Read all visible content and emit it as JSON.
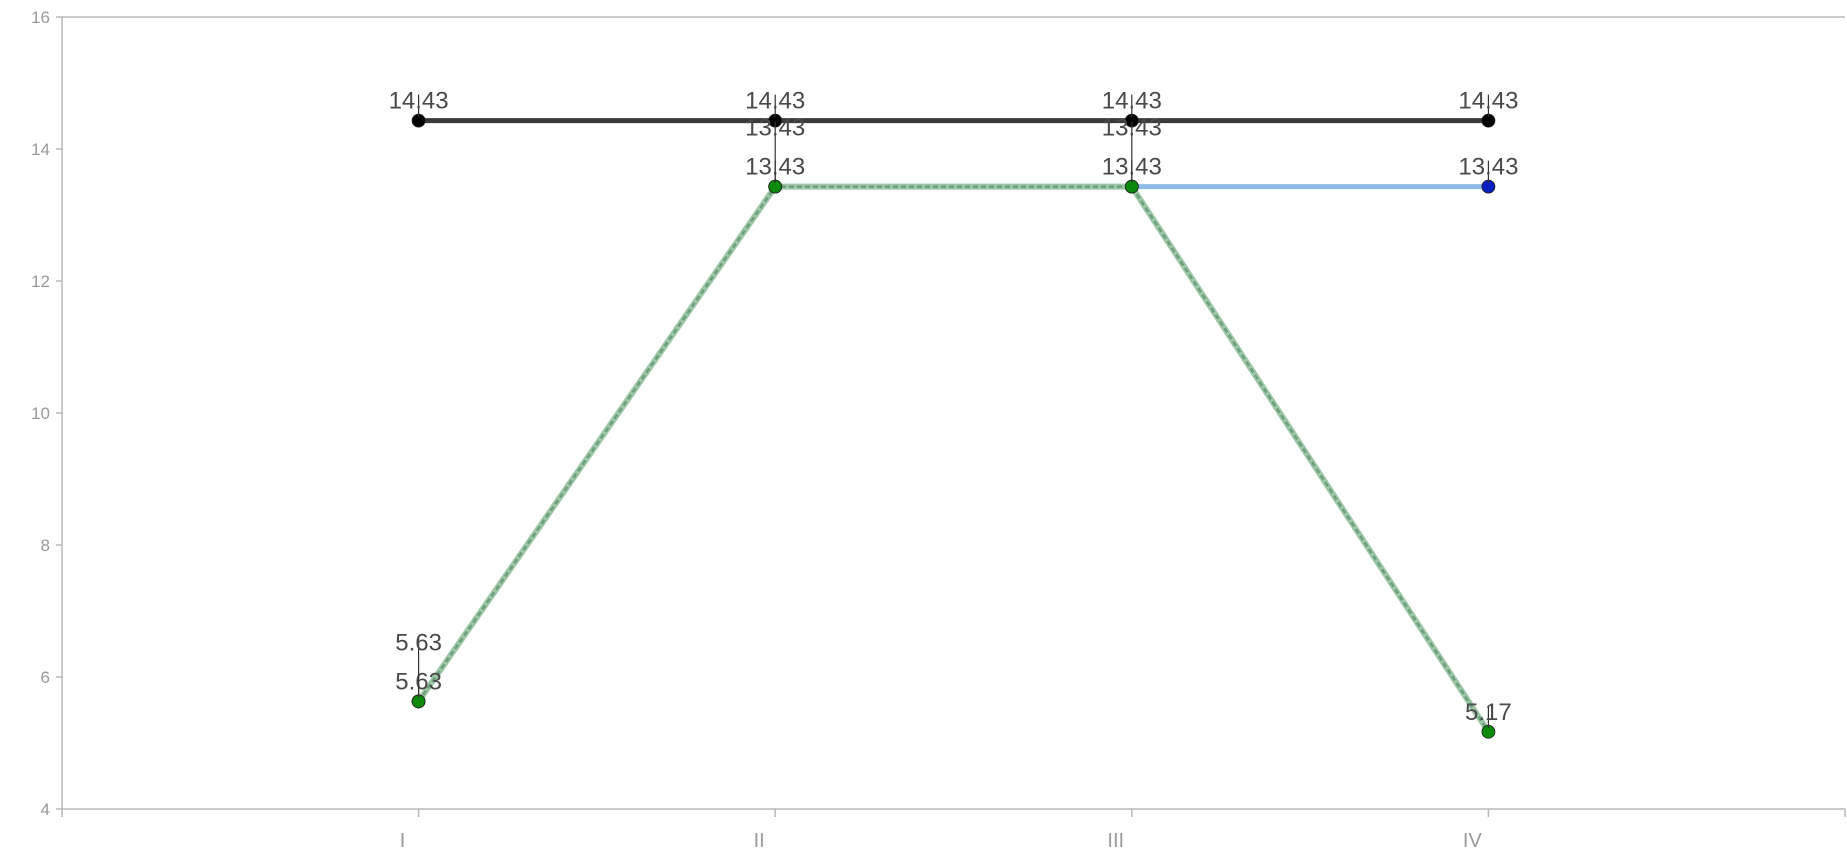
{
  "chart_data": {
    "type": "line",
    "title": "",
    "xlabel": "",
    "ylabel": "",
    "categories": [
      "I",
      "II",
      "III",
      "IV"
    ],
    "ylim": [
      4,
      16
    ],
    "yticks": [
      4,
      6,
      8,
      10,
      12,
      14,
      16
    ],
    "grid": false,
    "legend": "none",
    "series": [
      {
        "values": [
          14.43,
          14.43,
          14.43,
          14.43
        ],
        "line_color": "#3a3a3a",
        "marker_color": "#000000",
        "style": "solid",
        "data_labels": [
          "14.43",
          "14.43",
          "14.43",
          "14.43"
        ]
      },
      {
        "values": [
          5.63,
          13.43,
          13.43,
          13.43
        ],
        "line_color": "#8fbbe8",
        "marker_color": "#0a1fbf",
        "style": "solid",
        "data_labels": [
          "5.63",
          "13.43",
          "13.43",
          "13.43"
        ]
      },
      {
        "values": [
          5.63,
          13.43,
          13.43,
          5.17
        ],
        "line_color": "#6c9e7c",
        "marker_color": "#0b8a0b",
        "style": "dashed",
        "data_labels": [
          "5.63",
          "13.43",
          "13.43",
          "5.17"
        ]
      }
    ]
  }
}
